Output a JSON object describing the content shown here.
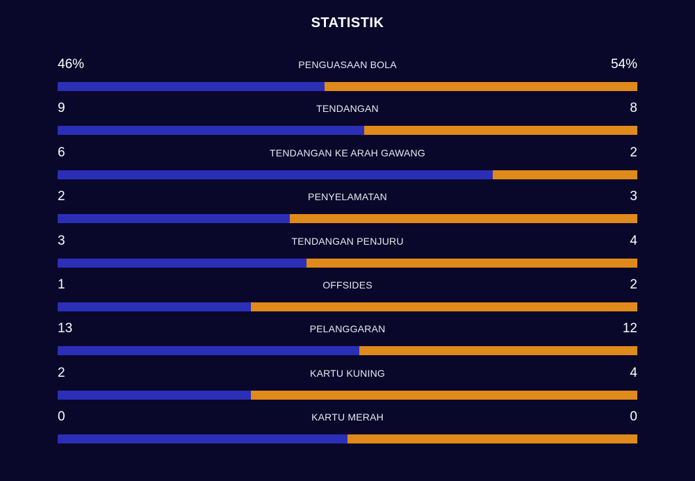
{
  "title": "STATISTIK",
  "colors": {
    "background": "#09082a",
    "home_bar": "#2b2fb8",
    "away_bar": "#e08a1b"
  },
  "stats": [
    {
      "label": "PENGUASAAN BOLA",
      "left": "46%",
      "right": "54%",
      "home_share": 0.46
    },
    {
      "label": "TENDANGAN",
      "left": "9",
      "right": "8",
      "home_share": 0.529
    },
    {
      "label": "TENDANGAN KE ARAH GAWANG",
      "left": "6",
      "right": "2",
      "home_share": 0.75
    },
    {
      "label": "PENYELAMATAN",
      "left": "2",
      "right": "3",
      "home_share": 0.4
    },
    {
      "label": "TENDANGAN PENJURU",
      "left": "3",
      "right": "4",
      "home_share": 0.429
    },
    {
      "label": "OFFSIDES",
      "left": "1",
      "right": "2",
      "home_share": 0.333
    },
    {
      "label": "PELANGGARAN",
      "left": "13",
      "right": "12",
      "home_share": 0.52
    },
    {
      "label": "KARTU KUNING",
      "left": "2",
      "right": "4",
      "home_share": 0.333
    },
    {
      "label": "KARTU MERAH",
      "left": "0",
      "right": "0",
      "home_share": 0.5
    }
  ]
}
